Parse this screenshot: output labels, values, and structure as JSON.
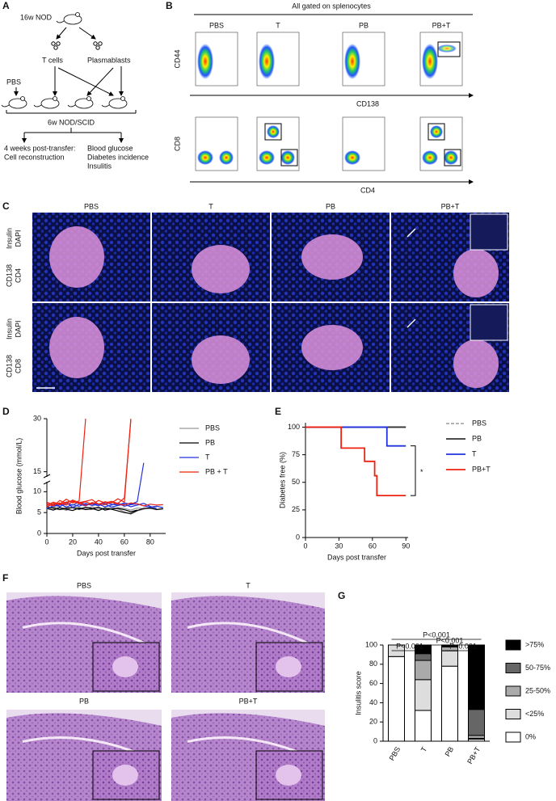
{
  "panel_a": {
    "letter": "A",
    "donor": "16w NOD",
    "groups": [
      "PBS",
      "T cells",
      "Plasmablasts"
    ],
    "recipient": "6w NOD/SCID",
    "readout_left": [
      "4 weeks post-transfer:",
      "Cell reconstruction"
    ],
    "readout_right": [
      "Blood glucose",
      "Diabetes incidence",
      "Insulitis"
    ]
  },
  "panel_b": {
    "letter": "B",
    "header": "All gated on splenocytes",
    "columns": [
      "PBS",
      "T",
      "PB",
      "PB+T"
    ],
    "rows": [
      {
        "y_label": "CD44",
        "x_label": "CD138"
      },
      {
        "y_label": "CD8",
        "x_label": "CD4"
      }
    ]
  },
  "panel_c": {
    "letter": "C",
    "columns": [
      "PBS",
      "T",
      "PB",
      "PB+T"
    ],
    "rows": [
      {
        "stains": [
          "Insulin",
          "DAPI",
          "CD138",
          "CD4"
        ]
      },
      {
        "stains": [
          "Insulin",
          "DAPI",
          "CD138",
          "CD8"
        ]
      }
    ]
  },
  "panel_f": {
    "letter": "F",
    "images": [
      "PBS",
      "T",
      "PB",
      "PB+T"
    ]
  },
  "chart_data": [
    {
      "type": "line",
      "panel_label": "D",
      "xlabel": "Days post transfer",
      "ylabel": "Blood glucose (mmol/L)",
      "x": [
        0,
        5,
        10,
        15,
        20,
        25,
        30,
        35,
        40,
        45,
        50,
        55,
        60,
        65,
        70,
        75,
        80,
        85,
        90
      ],
      "xlim": [
        0,
        92
      ],
      "xticks": [
        0,
        20,
        40,
        60,
        80
      ],
      "ylim": [
        0,
        30
      ],
      "yticks": [
        0,
        5,
        10,
        15,
        30
      ],
      "y_break": [
        12,
        14
      ],
      "series": [
        {
          "name": "PBS",
          "color": "#999999",
          "traces": [
            [
              6.2,
              6.0,
              5.8,
              6.3,
              6.1,
              5.7,
              6.0,
              6.4,
              5.9,
              6.1,
              5.8,
              6.2,
              6.0,
              5.6,
              6.1,
              5.9,
              6.0,
              5.8,
              6.1
            ],
            [
              5.8,
              6.3,
              6.1,
              5.5,
              6.4,
              6.2,
              5.9,
              5.7,
              6.2,
              5.8,
              6.3,
              5.9,
              5.2,
              4.6,
              5.4,
              5.8,
              6.2,
              5.9,
              null
            ]
          ]
        },
        {
          "name": "PB",
          "color": "#000000",
          "traces": [
            [
              6.0,
              5.6,
              6.2,
              5.8,
              5.5,
              6.1,
              5.7,
              5.9,
              6.3,
              5.6,
              5.9,
              6.0,
              5.7,
              5.2,
              5.6,
              null,
              null,
              null,
              null
            ],
            [
              6.4,
              6.1,
              5.7,
              6.0,
              6.2,
              5.8,
              6.3,
              6.0,
              5.5,
              6.1,
              5.8,
              5.4,
              5.0,
              4.8,
              5.5,
              6.0,
              6.1,
              5.7,
              5.9
            ]
          ]
        },
        {
          "name": "T",
          "color": "#2233dd",
          "traces": [
            [
              6.5,
              7.0,
              6.4,
              7.2,
              6.8,
              7.5,
              6.9,
              7.1,
              6.6,
              7.4,
              7.0,
              6.8,
              7.3,
              7.0,
              7.6,
              17.5,
              null,
              null,
              null
            ],
            [
              6.0,
              6.6,
              7.1,
              6.3,
              6.9,
              6.5,
              7.2,
              6.7,
              7.0,
              6.4,
              6.8,
              7.3,
              6.5,
              6.9,
              7.1,
              6.6,
              6.3,
              6.5,
              6.2
            ],
            [
              7.2,
              6.5,
              6.8,
              7.5,
              6.2,
              7.0,
              6.6,
              7.3,
              6.9,
              7.1,
              6.3,
              6.7,
              7.0,
              6.4,
              6.8,
              7.2,
              6.5,
              6.0,
              null
            ]
          ]
        },
        {
          "name": "PB + T",
          "color": "#ee2211",
          "traces": [
            [
              6.8,
              7.5,
              7.0,
              8.2,
              7.3,
              7.8,
              30,
              null,
              null,
              null,
              null,
              null,
              null,
              null,
              null,
              null,
              null,
              null,
              null
            ],
            [
              7.1,
              6.6,
              7.9,
              7.2,
              8.0,
              7.4,
              7.7,
              8.1,
              7.0,
              7.6,
              7.3,
              8.3,
              7.5,
              30,
              null,
              null,
              null,
              null,
              null
            ],
            [
              6.4,
              7.2,
              6.9,
              7.5,
              7.8,
              7.1,
              7.6,
              7.0,
              7.9,
              7.3,
              7.7,
              7.2,
              8.5,
              29.5,
              null,
              null,
              null,
              null,
              null
            ],
            [
              7.5,
              6.9,
              7.3,
              6.8,
              7.6,
              7.2,
              6.7,
              7.4,
              7.1,
              6.9,
              7.5,
              7.0,
              6.8,
              7.3,
              7.1,
              6.6,
              7.0,
              6.8,
              6.9
            ]
          ]
        }
      ]
    },
    {
      "type": "step",
      "panel_label": "E",
      "xlabel": "Days post transfer",
      "ylabel": "Diabetes free (%)",
      "xlim": [
        0,
        92
      ],
      "xticks": [
        0,
        30,
        60,
        90
      ],
      "ylim": [
        0,
        104
      ],
      "yticks": [
        0,
        25,
        50,
        75,
        100
      ],
      "annotation": "*",
      "series": [
        {
          "name": "PBS",
          "color": "#aaaaaa",
          "dashed": true,
          "x": [
            0,
            90
          ],
          "values": [
            100,
            100
          ]
        },
        {
          "name": "PB",
          "color": "#333333",
          "x": [
            0,
            90
          ],
          "values": [
            100,
            100
          ]
        },
        {
          "name": "T",
          "color": "#2233dd",
          "x": [
            0,
            73,
            90
          ],
          "values": [
            100,
            83,
            83
          ]
        },
        {
          "name": "PB+T",
          "color": "#ee2211",
          "x": [
            0,
            32,
            53,
            62,
            64,
            90
          ],
          "values": [
            100,
            81,
            69,
            56,
            38,
            38
          ]
        }
      ]
    },
    {
      "type": "stacked_bar",
      "panel_label": "G",
      "ylabel": "Insulitis score",
      "categories": [
        "PBS",
        "T",
        "PB",
        "PB+T"
      ],
      "ylim": [
        0,
        100
      ],
      "yticks": [
        0,
        20,
        40,
        60,
        80,
        100
      ],
      "comparisons": [
        "P<0.001",
        "P<0.001",
        "P<0.001",
        "P<0.001"
      ],
      "series": [
        {
          "name": "0%",
          "color": "#ffffff",
          "values": [
            88,
            32,
            78,
            2
          ]
        },
        {
          "name": "<25%",
          "color": "#dddddd",
          "values": [
            12,
            32,
            16,
            1
          ]
        },
        {
          "name": "25-50%",
          "color": "#aaaaaa",
          "values": [
            0,
            20,
            4,
            3
          ]
        },
        {
          "name": "50-75%",
          "color": "#666666",
          "values": [
            0,
            7,
            0,
            27
          ]
        },
        {
          "name": ">75%",
          "color": "#000000",
          "values": [
            0,
            9,
            2,
            67
          ]
        }
      ]
    }
  ]
}
